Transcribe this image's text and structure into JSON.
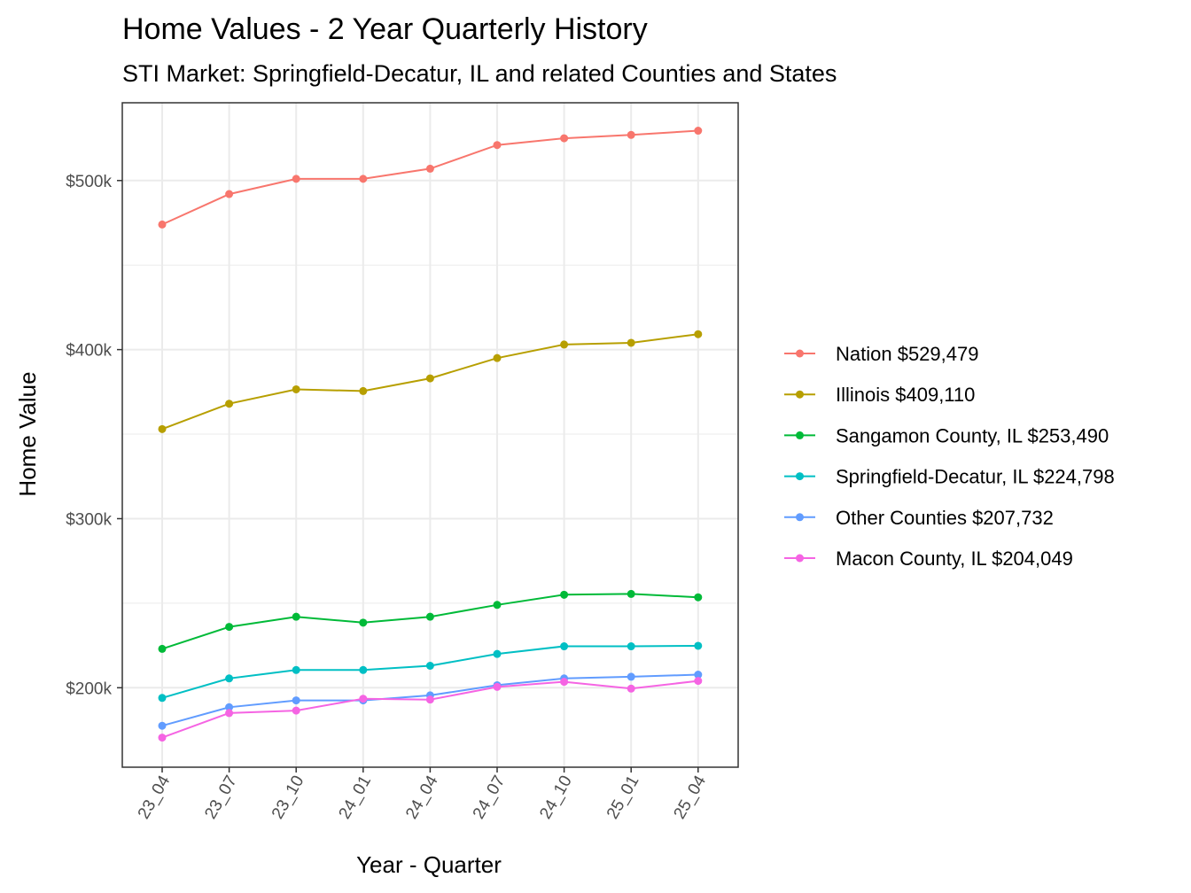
{
  "chart_data": {
    "type": "line",
    "title": "Home Values - 2 Year Quarterly History",
    "subtitle": "STI Market: Springfield-Decatur, IL and related Counties and States",
    "xlabel": "Year - Quarter",
    "ylabel": "Home Value",
    "categories": [
      "23_04",
      "23_07",
      "23_10",
      "24_01",
      "24_04",
      "24_07",
      "24_10",
      "25_01",
      "25_04"
    ],
    "ylim": [
      153000,
      546000
    ],
    "yticks": [
      200000,
      300000,
      400000,
      500000
    ],
    "ytick_labels": [
      "$200k",
      "$300k",
      "$400k",
      "$500k"
    ],
    "grid": true,
    "legend_position": "right",
    "series": [
      {
        "name": "Nation",
        "legend_label": "Nation $529,479",
        "color": "#F8766D",
        "values": [
          474000,
          492000,
          501000,
          501000,
          507000,
          521000,
          525000,
          527000,
          529479
        ]
      },
      {
        "name": "Illinois",
        "legend_label": "Illinois $409,110",
        "color": "#B79F00",
        "values": [
          353000,
          368000,
          376500,
          375500,
          383000,
          395000,
          403000,
          404000,
          409110
        ]
      },
      {
        "name": "Sangamon County, IL",
        "legend_label": "Sangamon County, IL $253,490",
        "color": "#00BA38",
        "values": [
          223000,
          236000,
          242000,
          238500,
          242000,
          249000,
          255000,
          255500,
          253490
        ]
      },
      {
        "name": "Springfield-Decatur, IL",
        "legend_label": "Springfield-Decatur, IL $224,798",
        "color": "#00BFC4",
        "values": [
          194000,
          205500,
          210500,
          210500,
          213000,
          220000,
          224500,
          224500,
          224798
        ]
      },
      {
        "name": "Other Counties",
        "legend_label": "Other Counties $207,732",
        "color": "#619CFF",
        "values": [
          177500,
          188500,
          192500,
          192500,
          195500,
          201500,
          205500,
          206500,
          207732
        ]
      },
      {
        "name": "Macon County, IL",
        "legend_label": "Macon County, IL $204,049",
        "color": "#F564E3",
        "values": [
          170500,
          185000,
          186500,
          193500,
          193000,
          200500,
          203500,
          199500,
          204049
        ]
      }
    ]
  }
}
